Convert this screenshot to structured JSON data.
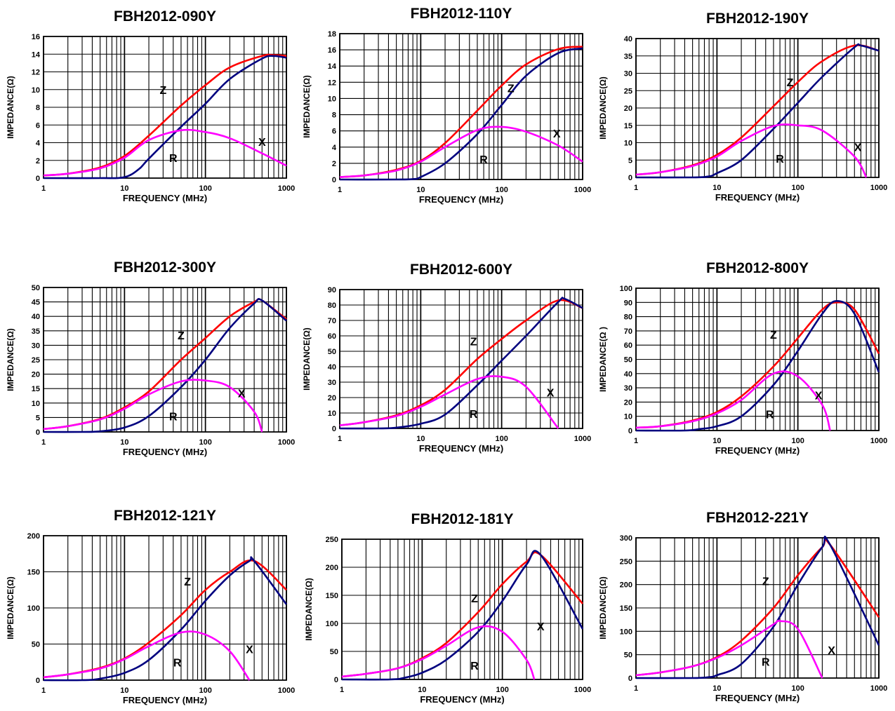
{
  "colors": {
    "Z": "#ff0000",
    "R": "#00007f",
    "X": "#ff00ff",
    "grid": "#000000"
  },
  "chart_data": [
    {
      "type": "line",
      "title": "FBH2012-090Y",
      "xlabel": "FREQUENCY (MHz)",
      "ylabel": "IMPEDANCE(Ω)",
      "xscale": "log",
      "xlim": [
        1,
        1000
      ],
      "ylim": [
        0,
        16
      ],
      "yticks": [
        0,
        2,
        4,
        6,
        8,
        10,
        12,
        14,
        16
      ],
      "xticks": [
        "1",
        "10",
        "100",
        "1000"
      ],
      "grid": true,
      "series": [
        {
          "name": "Z",
          "x": [
            1,
            2,
            5,
            10,
            20,
            50,
            100,
            200,
            500,
            700,
            1000
          ],
          "y": [
            0.3,
            0.5,
            1.2,
            2.5,
            4.8,
            8.2,
            10.5,
            12.5,
            13.8,
            13.9,
            13.8
          ]
        },
        {
          "name": "R",
          "x": [
            1,
            5,
            10,
            15,
            20,
            50,
            100,
            200,
            500,
            700,
            1000
          ],
          "y": [
            0,
            0,
            0.1,
            1,
            2.2,
            5.8,
            8.4,
            11.2,
            13.5,
            13.8,
            13.6
          ]
        },
        {
          "name": "X",
          "x": [
            1,
            2,
            5,
            10,
            20,
            50,
            100,
            200,
            500,
            1000
          ],
          "y": [
            0.3,
            0.5,
            1.1,
            2.3,
            4.3,
            5.4,
            5.2,
            4.5,
            2.8,
            1.4
          ]
        }
      ],
      "annotations": [
        {
          "text": "Z",
          "x": 30,
          "y": 10
        },
        {
          "text": "R",
          "x": 40,
          "y": 2.3
        },
        {
          "text": "X",
          "x": 500,
          "y": 4.1
        }
      ]
    },
    {
      "type": "line",
      "title": "FBH2012-110Y",
      "xlabel": "FREQUENCY (MHz)",
      "ylabel": "IMPEDANCE(Ω)",
      "xscale": "log",
      "xlim": [
        1,
        1000
      ],
      "ylim": [
        0,
        18
      ],
      "yticks": [
        0,
        2,
        4,
        6,
        8,
        10,
        12,
        14,
        16,
        18
      ],
      "xticks": [
        "1",
        "10",
        "100",
        "1000"
      ],
      "grid": true,
      "series": [
        {
          "name": "Z",
          "x": [
            1,
            2,
            5,
            10,
            20,
            50,
            100,
            200,
            500,
            1000
          ],
          "y": [
            0.3,
            0.5,
            1.2,
            2.3,
            4.5,
            8.5,
            11.6,
            14.2,
            16.1,
            16.4
          ]
        },
        {
          "name": "R",
          "x": [
            1,
            5,
            8,
            10,
            20,
            50,
            100,
            200,
            500,
            1000
          ],
          "y": [
            0,
            0,
            0.05,
            0.3,
            2,
            5.6,
            9.2,
            12.8,
            15.6,
            16.2
          ]
        },
        {
          "name": "X",
          "x": [
            1,
            2,
            5,
            10,
            20,
            50,
            100,
            200,
            500,
            1000
          ],
          "y": [
            0.3,
            0.5,
            1.1,
            2.2,
            4,
            6.1,
            6.5,
            5.9,
            4.2,
            2.2
          ]
        }
      ],
      "annotations": [
        {
          "text": "Z",
          "x": 130,
          "y": 11.3
        },
        {
          "text": "R",
          "x": 60,
          "y": 2.5
        },
        {
          "text": "X",
          "x": 480,
          "y": 5.7
        }
      ]
    },
    {
      "type": "line",
      "title": "FBH2012-190Y",
      "xlabel": "FREQUENCY (MHz)",
      "ylabel": "IMPEDANCE(Ω)",
      "xscale": "log",
      "xlim": [
        1,
        1000
      ],
      "ylim": [
        0,
        40
      ],
      "yticks": [
        0,
        5,
        10,
        15,
        20,
        25,
        30,
        35,
        40
      ],
      "xticks": [
        "1",
        "10",
        "100",
        "1000"
      ],
      "grid": true,
      "series": [
        {
          "name": "Z",
          "x": [
            1,
            2,
            5,
            10,
            20,
            50,
            100,
            200,
            500,
            1000
          ],
          "y": [
            0.8,
            1.5,
            3.5,
            6.5,
            11.5,
            20.5,
            27.5,
            33.5,
            38,
            36.5
          ]
        },
        {
          "name": "R",
          "x": [
            1,
            5,
            8,
            10,
            20,
            50,
            100,
            200,
            500,
            600,
            1000
          ],
          "y": [
            0,
            0,
            0.3,
            1.2,
            5,
            14,
            21.5,
            29,
            37.5,
            38,
            36.5
          ]
        },
        {
          "name": "X",
          "x": [
            1,
            2,
            5,
            10,
            20,
            50,
            100,
            200,
            500,
            700
          ],
          "y": [
            0.8,
            1.5,
            3.3,
            6,
            10.5,
            14.8,
            15,
            13.5,
            6,
            0
          ]
        }
      ],
      "annotations": [
        {
          "text": "Z",
          "x": 80,
          "y": 27.5
        },
        {
          "text": "R",
          "x": 60,
          "y": 5.5
        },
        {
          "text": "X",
          "x": 550,
          "y": 8.8
        }
      ]
    },
    {
      "type": "line",
      "title": "FBH2012-300Y",
      "xlabel": "FREQUENCY (MHz)",
      "ylabel": "IMPEDANCE(Ω)",
      "xscale": "log",
      "xlim": [
        1,
        1000
      ],
      "ylim": [
        0,
        50
      ],
      "yticks": [
        0,
        5,
        10,
        15,
        20,
        25,
        30,
        35,
        40,
        45,
        50
      ],
      "xticks": [
        "1",
        "10",
        "100",
        "1000"
      ],
      "grid": true,
      "series": [
        {
          "name": "Z",
          "x": [
            1,
            2,
            5,
            10,
            20,
            50,
            100,
            200,
            400,
            500,
            1000
          ],
          "y": [
            1,
            2,
            4.5,
            8.5,
            14,
            25,
            32.5,
            40,
            45,
            45.5,
            39
          ]
        },
        {
          "name": "R",
          "x": [
            1,
            3,
            5,
            10,
            20,
            50,
            100,
            200,
            400,
            500,
            1000
          ],
          "y": [
            0,
            0,
            0.2,
            1.5,
            5.5,
            15.5,
            25,
            36,
            44.5,
            45.5,
            38.5
          ]
        },
        {
          "name": "X",
          "x": [
            1,
            2,
            5,
            10,
            20,
            50,
            100,
            200,
            400,
            500
          ],
          "y": [
            1,
            2,
            4.3,
            8,
            13,
            17.5,
            17.8,
            15.5,
            7,
            0
          ]
        }
      ],
      "annotations": [
        {
          "text": "Z",
          "x": 50,
          "y": 33.5
        },
        {
          "text": "R",
          "x": 40,
          "y": 5.5
        },
        {
          "text": "X",
          "x": 280,
          "y": 13.5
        }
      ]
    },
    {
      "type": "line",
      "title": "FBH2012-600Y",
      "xlabel": "FREQUENCY (MHz)",
      "ylabel": "IMPEDANCE(Ω)",
      "xscale": "log",
      "xlim": [
        1,
        1000
      ],
      "ylim": [
        0,
        90
      ],
      "yticks": [
        0,
        10,
        20,
        30,
        40,
        50,
        60,
        70,
        80,
        90
      ],
      "xticks": [
        "1",
        "10",
        "100",
        "1000"
      ],
      "grid": true,
      "series": [
        {
          "name": "Z",
          "x": [
            1,
            2,
            5,
            10,
            20,
            50,
            100,
            200,
            500,
            1000
          ],
          "y": [
            2,
            4,
            8.5,
            15,
            25,
            45,
            58,
            70,
            83,
            78
          ]
        },
        {
          "name": "R",
          "x": [
            1,
            3,
            5,
            10,
            20,
            50,
            100,
            200,
            500,
            600,
            1000
          ],
          "y": [
            0,
            0,
            0.5,
            3,
            9,
            28,
            44,
            60,
            82,
            84,
            78
          ]
        },
        {
          "name": "X",
          "x": [
            1,
            2,
            5,
            10,
            20,
            50,
            100,
            200,
            500
          ],
          "y": [
            2,
            4,
            8,
            14,
            22,
            32,
            33.5,
            27,
            0
          ]
        }
      ],
      "annotations": [
        {
          "text": "Z",
          "x": 45,
          "y": 56.5
        },
        {
          "text": "R",
          "x": 45,
          "y": 9.5
        },
        {
          "text": "X",
          "x": 400,
          "y": 23.5
        }
      ]
    },
    {
      "type": "line",
      "title": "FBH2012-800Y",
      "xlabel": "FREQUENCY (MHz)",
      "ylabel": "IMPEDANCE(Ω )",
      "xscale": "log",
      "xlim": [
        1,
        1000
      ],
      "ylim": [
        0,
        100
      ],
      "yticks": [
        0,
        10,
        20,
        30,
        40,
        50,
        60,
        70,
        80,
        90,
        100
      ],
      "xticks": [
        "1",
        "10",
        "100",
        "1000"
      ],
      "grid": true,
      "series": [
        {
          "name": "Z",
          "x": [
            1,
            2,
            5,
            10,
            20,
            50,
            100,
            200,
            300,
            500,
            1000
          ],
          "y": [
            2,
            3,
            7,
            13,
            24,
            45,
            65,
            85,
            90,
            85,
            54
          ]
        },
        {
          "name": "R",
          "x": [
            1,
            4,
            6,
            10,
            20,
            50,
            100,
            200,
            300,
            500,
            1000
          ],
          "y": [
            0,
            0,
            1,
            3,
            10,
            32,
            56,
            82,
            91,
            82,
            41
          ]
        },
        {
          "name": "X",
          "x": [
            1,
            2,
            5,
            10,
            20,
            50,
            100,
            200,
            250
          ],
          "y": [
            2,
            3,
            6.5,
            12,
            21.5,
            40,
            38,
            18,
            0
          ]
        }
      ],
      "annotations": [
        {
          "text": "Z",
          "x": 50,
          "y": 67.5
        },
        {
          "text": "R",
          "x": 45,
          "y": 11.5
        },
        {
          "text": "X",
          "x": 180,
          "y": 25
        }
      ]
    },
    {
      "type": "line",
      "title": "FBH2012-121Y",
      "xlabel": "FREQUENCY (MHz)",
      "ylabel": "IMPEDANCE(Ω)",
      "xscale": "log",
      "xlim": [
        1,
        1000
      ],
      "ylim": [
        0,
        200
      ],
      "yticks": [
        0,
        50,
        100,
        150,
        200
      ],
      "xticks": [
        "1",
        "10",
        "100",
        "1000"
      ],
      "grid": true,
      "series": [
        {
          "name": "Z",
          "x": [
            1,
            2,
            5,
            10,
            20,
            50,
            100,
            200,
            400,
            1000
          ],
          "y": [
            4,
            8,
            17,
            30,
            52,
            90,
            125,
            150,
            165,
            125
          ]
        },
        {
          "name": "R",
          "x": [
            1,
            3,
            5,
            10,
            20,
            50,
            100,
            200,
            350,
            400,
            1000
          ],
          "y": [
            0,
            0,
            2,
            10,
            28,
            70,
            110,
            145,
            165,
            165,
            105
          ]
        },
        {
          "name": "X",
          "x": [
            1,
            2,
            5,
            10,
            20,
            50,
            100,
            200,
            350
          ],
          "y": [
            4,
            8,
            16,
            29,
            47,
            66,
            63,
            40,
            0
          ]
        }
      ],
      "annotations": [
        {
          "text": "Z",
          "x": 60,
          "y": 137
        },
        {
          "text": "R",
          "x": 45,
          "y": 25
        },
        {
          "text": "X",
          "x": 350,
          "y": 43
        }
      ]
    },
    {
      "type": "line",
      "title": "FBH2012-181Y",
      "xlabel": "FREQUENCY (MHz)",
      "ylabel": "IMPEDANCE(Ω)",
      "xscale": "log",
      "xlim": [
        1,
        1000
      ],
      "ylim": [
        0,
        250
      ],
      "yticks": [
        0,
        50,
        100,
        150,
        200,
        250
      ],
      "xticks": [
        "1",
        "10",
        "100",
        "1000"
      ],
      "grid": true,
      "series": [
        {
          "name": "Z",
          "x": [
            1,
            2,
            5,
            10,
            20,
            50,
            100,
            200,
            300,
            1000
          ],
          "y": [
            5,
            10,
            20,
            38,
            65,
            120,
            170,
            210,
            222,
            135
          ]
        },
        {
          "name": "R",
          "x": [
            1,
            4,
            6,
            10,
            20,
            50,
            100,
            200,
            300,
            1000
          ],
          "y": [
            0,
            0,
            3,
            12,
            35,
            85,
            140,
            205,
            222,
            90
          ]
        },
        {
          "name": "X",
          "x": [
            1,
            2,
            5,
            10,
            20,
            50,
            100,
            200,
            250
          ],
          "y": [
            5,
            10,
            20,
            36,
            60,
            93,
            85,
            35,
            0
          ]
        }
      ],
      "annotations": [
        {
          "text": "Z",
          "x": 45,
          "y": 145
        },
        {
          "text": "R",
          "x": 45,
          "y": 25
        },
        {
          "text": "X",
          "x": 300,
          "y": 95
        }
      ]
    },
    {
      "type": "line",
      "title": "FBH2012-221Y",
      "xlabel": "FREQUENCY (MHz)",
      "ylabel": "IMPEDANCE(Ω)",
      "xscale": "log",
      "xlim": [
        1,
        1000
      ],
      "ylim": [
        0,
        300
      ],
      "yticks": [
        0,
        50,
        100,
        150,
        200,
        250,
        300
      ],
      "xticks": [
        "1",
        "10",
        "100",
        "1000"
      ],
      "grid": true,
      "series": [
        {
          "name": "Z",
          "x": [
            1,
            2,
            5,
            10,
            20,
            50,
            100,
            200,
            250,
            1000
          ],
          "y": [
            6,
            12,
            25,
            45,
            80,
            150,
            220,
            280,
            285,
            130
          ]
        },
        {
          "name": "R",
          "x": [
            1,
            5,
            8,
            10,
            20,
            50,
            100,
            200,
            250,
            1000
          ],
          "y": [
            0,
            0,
            2,
            6,
            30,
            110,
            200,
            280,
            285,
            70
          ]
        },
        {
          "name": "X",
          "x": [
            1,
            2,
            5,
            10,
            20,
            50,
            60,
            100,
            200
          ],
          "y": [
            6,
            12,
            25,
            43,
            70,
            115,
            122,
            105,
            0
          ]
        }
      ],
      "annotations": [
        {
          "text": "Z",
          "x": 40,
          "y": 208
        },
        {
          "text": "R",
          "x": 40,
          "y": 35
        },
        {
          "text": "X",
          "x": 260,
          "y": 60
        }
      ]
    }
  ]
}
